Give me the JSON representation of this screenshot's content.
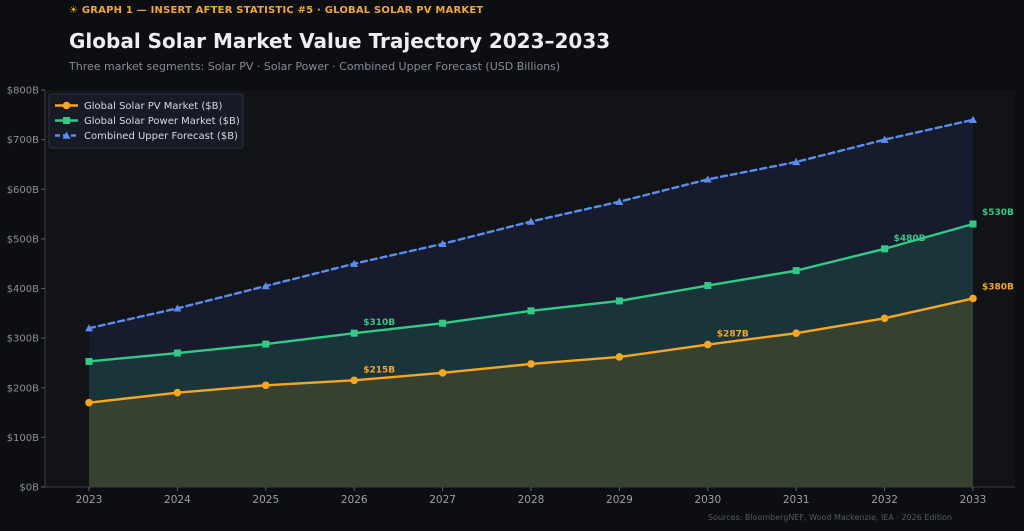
{
  "header": {
    "eyebrow": "☀  GRAPH 1 — INSERT AFTER STATISTIC #5 · GLOBAL SOLAR PV MARKET",
    "title": "Global Solar Market Value Trajectory 2023–2033",
    "subtitle": "Three market segments: Solar PV · Solar Power · Combined Upper Forecast  (USD Billions)"
  },
  "footer": {
    "source": "Sources: BloombergNEF, Wood Mackenzie, IEA · 2026 Edition"
  },
  "colors": {
    "pv": "#f5a623",
    "power": "#34c987",
    "forecast": "#5b8def"
  },
  "chart_data": {
    "type": "line",
    "title": "Global Solar Market Value Trajectory 2023–2033",
    "xlabel": "",
    "ylabel": "",
    "x": [
      2023,
      2024,
      2025,
      2026,
      2027,
      2028,
      2029,
      2030,
      2031,
      2032,
      2033
    ],
    "ylim": [
      0,
      800
    ],
    "y_ticks": [
      0,
      100,
      200,
      300,
      400,
      500,
      600,
      700,
      800
    ],
    "y_tick_labels": [
      "$0B",
      "$100B",
      "$200B",
      "$300B",
      "$400B",
      "$500B",
      "$600B",
      "$700B",
      "$800B"
    ],
    "grid": false,
    "legend_position": "top-left",
    "series": [
      {
        "name": "Global Solar PV Market ($B)",
        "color": "#f5a623",
        "marker": "circle",
        "dash": "solid",
        "values": [
          170,
          190,
          205,
          215,
          230,
          248,
          262,
          287,
          310,
          340,
          380
        ]
      },
      {
        "name": "Global Solar Power Market ($B)",
        "color": "#34c987",
        "marker": "square",
        "dash": "solid",
        "values": [
          253,
          270,
          288,
          310,
          330,
          355,
          375,
          406,
          436,
          480,
          530
        ]
      },
      {
        "name": "Combined Upper Forecast ($B)",
        "color": "#5b8def",
        "marker": "triangle",
        "dash": "dashed",
        "values": [
          320,
          360,
          405,
          450,
          490,
          535,
          575,
          620,
          655,
          700,
          740
        ]
      }
    ],
    "annotations": [
      {
        "series": 0,
        "x": 2026,
        "text": "$215B"
      },
      {
        "series": 0,
        "x": 2030,
        "text": "$287B"
      },
      {
        "series": 0,
        "x": 2033,
        "text": "$380B"
      },
      {
        "series": 1,
        "x": 2026,
        "text": "$310B"
      },
      {
        "series": 1,
        "x": 2032,
        "text": "$480B"
      },
      {
        "series": 1,
        "x": 2033,
        "text": "$530B"
      }
    ]
  }
}
